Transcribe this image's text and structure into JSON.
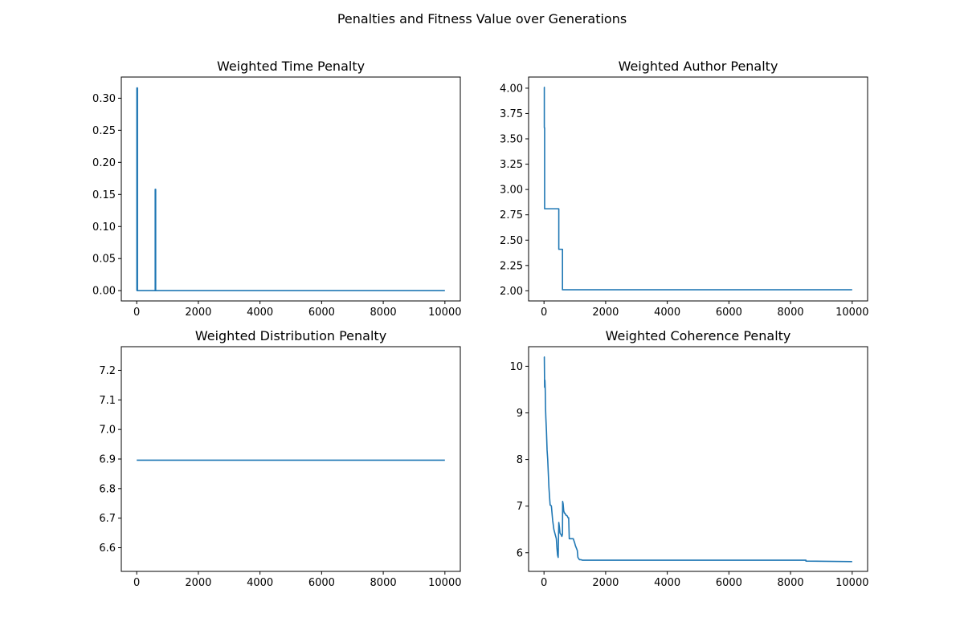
{
  "suptitle": "Penalties and Fitness Value over Generations",
  "line_color": "#1f77b4",
  "chart_data": [
    {
      "type": "line",
      "title": "Weighted Time Penalty",
      "xlabel": "",
      "ylabel": "",
      "xlim": [
        -500,
        10500
      ],
      "ylim": [
        -0.016,
        0.333
      ],
      "xticks": [
        0,
        2000,
        4000,
        6000,
        8000,
        10000
      ],
      "xtick_labels": [
        "0",
        "2000",
        "4000",
        "6000",
        "8000",
        "10000"
      ],
      "yticks": [
        0.0,
        0.05,
        0.1,
        0.15,
        0.2,
        0.25,
        0.3
      ],
      "ytick_labels": [
        "0.00",
        "0.05",
        "0.10",
        "0.15",
        "0.20",
        "0.25",
        "0.30"
      ],
      "grid": false,
      "series": [
        {
          "x": [
            0,
            5,
            5,
            25,
            25,
            35,
            35,
            600,
            600,
            615,
            615,
            10000
          ],
          "y": [
            0.0,
            0.0,
            0.316,
            0.316,
            0.0,
            0.0,
            0.0,
            0.0,
            0.158,
            0.158,
            0.0,
            0.0
          ]
        }
      ]
    },
    {
      "type": "line",
      "title": "Weighted Author Penalty",
      "xlabel": "",
      "ylabel": "",
      "xlim": [
        -500,
        10500
      ],
      "ylim": [
        1.9,
        4.11
      ],
      "xticks": [
        0,
        2000,
        4000,
        6000,
        8000,
        10000
      ],
      "xtick_labels": [
        "0",
        "2000",
        "4000",
        "6000",
        "8000",
        "10000"
      ],
      "yticks": [
        2.0,
        2.25,
        2.5,
        2.75,
        3.0,
        3.25,
        3.5,
        3.75,
        4.0
      ],
      "ytick_labels": [
        "2.00",
        "2.25",
        "2.50",
        "2.75",
        "3.00",
        "3.25",
        "3.50",
        "3.75",
        "4.00"
      ],
      "grid": false,
      "series": [
        {
          "x": [
            0,
            10,
            10,
            20,
            20,
            480,
            480,
            600,
            600,
            10000
          ],
          "y": [
            4.01,
            4.01,
            3.61,
            3.61,
            2.81,
            2.81,
            2.41,
            2.41,
            2.01,
            2.01
          ]
        }
      ]
    },
    {
      "type": "line",
      "title": "Weighted Distribution Penalty",
      "xlabel": "",
      "ylabel": "",
      "xlim": [
        -500,
        10500
      ],
      "ylim": [
        6.52,
        7.28
      ],
      "xticks": [
        0,
        2000,
        4000,
        6000,
        8000,
        10000
      ],
      "xtick_labels": [
        "0",
        "2000",
        "4000",
        "6000",
        "8000",
        "10000"
      ],
      "yticks": [
        6.6,
        6.7,
        6.8,
        6.9,
        7.0,
        7.1,
        7.2
      ],
      "ytick_labels": [
        "6.6",
        "6.7",
        "6.8",
        "6.9",
        "7.0",
        "7.1",
        "7.2"
      ],
      "grid": false,
      "series": [
        {
          "x": [
            0,
            10000
          ],
          "y": [
            6.896,
            6.896
          ]
        }
      ]
    },
    {
      "type": "line",
      "title": "Weighted Coherence Penalty",
      "xlabel": "",
      "ylabel": "",
      "xlim": [
        -500,
        10500
      ],
      "ylim": [
        5.6,
        10.42
      ],
      "xticks": [
        0,
        2000,
        4000,
        6000,
        8000,
        10000
      ],
      "xtick_labels": [
        "0",
        "2000",
        "4000",
        "6000",
        "8000",
        "10000"
      ],
      "yticks": [
        6,
        7,
        8,
        9,
        10
      ],
      "ytick_labels": [
        "6",
        "7",
        "8",
        "9",
        "10"
      ],
      "grid": false,
      "series": [
        {
          "x": [
            0,
            10,
            20,
            30,
            40,
            50,
            60,
            80,
            100,
            120,
            140,
            160,
            180,
            200,
            220,
            240,
            260,
            280,
            300,
            320,
            340,
            360,
            380,
            400,
            420,
            440,
            460,
            470,
            480,
            500,
            520,
            540,
            560,
            580,
            600,
            605,
            620,
            640,
            660,
            680,
            700,
            720,
            740,
            760,
            780,
            800,
            820,
            850,
            900,
            950,
            1000,
            1020,
            1050,
            1080,
            1100,
            1120,
            1150,
            1200,
            1250,
            8500,
            8500,
            10000
          ],
          "y": [
            10.2,
            10.2,
            9.55,
            9.7,
            9.5,
            9.1,
            8.9,
            8.6,
            8.2,
            8.0,
            7.7,
            7.4,
            7.2,
            7.02,
            7.02,
            7.0,
            6.85,
            6.7,
            6.6,
            6.5,
            6.45,
            6.4,
            6.35,
            6.3,
            6.1,
            5.95,
            5.9,
            6.3,
            6.65,
            6.55,
            6.42,
            6.4,
            6.38,
            6.35,
            6.4,
            7.1,
            7.05,
            6.9,
            6.85,
            6.85,
            6.82,
            6.8,
            6.8,
            6.78,
            6.75,
            6.75,
            6.3,
            6.3,
            6.3,
            6.3,
            6.2,
            6.15,
            6.1,
            6.05,
            5.9,
            5.88,
            5.85,
            5.85,
            5.84,
            5.84,
            5.82,
            5.81
          ]
        }
      ]
    }
  ]
}
